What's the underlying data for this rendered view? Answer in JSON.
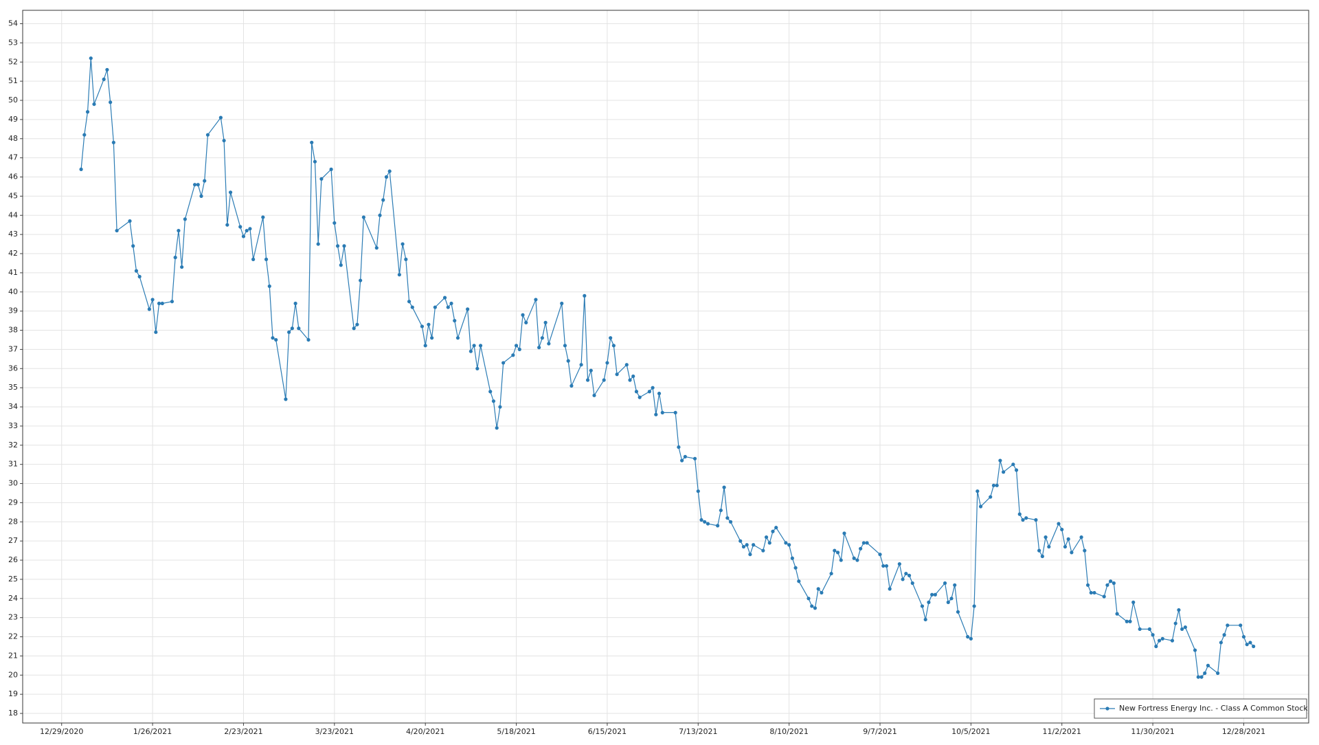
{
  "chart_data": {
    "type": "line",
    "x": [
      "1/4/2021",
      "1/5/2021",
      "1/6/2021",
      "1/7/2021",
      "1/8/2021",
      "1/11/2021",
      "1/12/2021",
      "1/13/2021",
      "1/14/2021",
      "1/15/2021",
      "1/19/2021",
      "1/20/2021",
      "1/21/2021",
      "1/22/2021",
      "1/25/2021",
      "1/26/2021",
      "1/27/2021",
      "1/28/2021",
      "1/29/2021",
      "2/1/2021",
      "2/2/2021",
      "2/3/2021",
      "2/4/2021",
      "2/5/2021",
      "2/8/2021",
      "2/9/2021",
      "2/10/2021",
      "2/11/2021",
      "2/12/2021",
      "2/16/2021",
      "2/17/2021",
      "2/18/2021",
      "2/19/2021",
      "2/22/2021",
      "2/23/2021",
      "2/24/2021",
      "2/25/2021",
      "2/26/2021",
      "3/1/2021",
      "3/2/2021",
      "3/3/2021",
      "3/4/2021",
      "3/5/2021",
      "3/8/2021",
      "3/9/2021",
      "3/10/2021",
      "3/11/2021",
      "3/12/2021",
      "3/15/2021",
      "3/16/2021",
      "3/17/2021",
      "3/18/2021",
      "3/19/2021",
      "3/22/2021",
      "3/23/2021",
      "3/24/2021",
      "3/25/2021",
      "3/26/2021",
      "3/29/2021",
      "3/30/2021",
      "3/31/2021",
      "4/1/2021",
      "4/5/2021",
      "4/6/2021",
      "4/7/2021",
      "4/8/2021",
      "4/9/2021",
      "4/12/2021",
      "4/13/2021",
      "4/14/2021",
      "4/15/2021",
      "4/16/2021",
      "4/19/2021",
      "4/20/2021",
      "4/21/2021",
      "4/22/2021",
      "4/23/2021",
      "4/26/2021",
      "4/27/2021",
      "4/28/2021",
      "4/29/2021",
      "4/30/2021",
      "5/3/2021",
      "5/4/2021",
      "5/5/2021",
      "5/6/2021",
      "5/7/2021",
      "5/10/2021",
      "5/11/2021",
      "5/12/2021",
      "5/13/2021",
      "5/14/2021",
      "5/17/2021",
      "5/18/2021",
      "5/19/2021",
      "5/20/2021",
      "5/21/2021",
      "5/24/2021",
      "5/25/2021",
      "5/26/2021",
      "5/27/2021",
      "5/28/2021",
      "6/1/2021",
      "6/2/2021",
      "6/3/2021",
      "6/4/2021",
      "6/7/2021",
      "6/8/2021",
      "6/9/2021",
      "6/10/2021",
      "6/11/2021",
      "6/14/2021",
      "6/15/2021",
      "6/16/2021",
      "6/17/2021",
      "6/18/2021",
      "6/21/2021",
      "6/22/2021",
      "6/23/2021",
      "6/24/2021",
      "6/25/2021",
      "6/28/2021",
      "6/29/2021",
      "6/30/2021",
      "7/1/2021",
      "7/2/2021",
      "7/6/2021",
      "7/7/2021",
      "7/8/2021",
      "7/9/2021",
      "7/12/2021",
      "7/13/2021",
      "7/14/2021",
      "7/15/2021",
      "7/16/2021",
      "7/19/2021",
      "7/20/2021",
      "7/21/2021",
      "7/22/2021",
      "7/23/2021",
      "7/26/2021",
      "7/27/2021",
      "7/28/2021",
      "7/29/2021",
      "7/30/2021",
      "8/2/2021",
      "8/3/2021",
      "8/4/2021",
      "8/5/2021",
      "8/6/2021",
      "8/9/2021",
      "8/10/2021",
      "8/11/2021",
      "8/12/2021",
      "8/13/2021",
      "8/16/2021",
      "8/17/2021",
      "8/18/2021",
      "8/19/2021",
      "8/20/2021",
      "8/23/2021",
      "8/24/2021",
      "8/25/2021",
      "8/26/2021",
      "8/27/2021",
      "8/30/2021",
      "8/31/2021",
      "9/1/2021",
      "9/2/2021",
      "9/3/2021",
      "9/7/2021",
      "9/8/2021",
      "9/9/2021",
      "9/10/2021",
      "9/13/2021",
      "9/14/2021",
      "9/15/2021",
      "9/16/2021",
      "9/17/2021",
      "9/20/2021",
      "9/21/2021",
      "9/22/2021",
      "9/23/2021",
      "9/24/2021",
      "9/27/2021",
      "9/28/2021",
      "9/29/2021",
      "9/30/2021",
      "10/1/2021",
      "10/4/2021",
      "10/5/2021",
      "10/6/2021",
      "10/7/2021",
      "10/8/2021",
      "10/11/2021",
      "10/12/2021",
      "10/13/2021",
      "10/14/2021",
      "10/15/2021",
      "10/18/2021",
      "10/19/2021",
      "10/20/2021",
      "10/21/2021",
      "10/22/2021",
      "10/25/2021",
      "10/26/2021",
      "10/27/2021",
      "10/28/2021",
      "10/29/2021",
      "11/1/2021",
      "11/2/2021",
      "11/3/2021",
      "11/4/2021",
      "11/5/2021",
      "11/8/2021",
      "11/9/2021",
      "11/10/2021",
      "11/11/2021",
      "11/12/2021",
      "11/15/2021",
      "11/16/2021",
      "11/17/2021",
      "11/18/2021",
      "11/19/2021",
      "11/22/2021",
      "11/23/2021",
      "11/24/2021",
      "11/26/2021",
      "11/29/2021",
      "11/30/2021",
      "12/1/2021",
      "12/2/2021",
      "12/3/2021",
      "12/6/2021",
      "12/7/2021",
      "12/8/2021",
      "12/9/2021",
      "12/10/2021",
      "12/13/2021",
      "12/14/2021",
      "12/15/2021",
      "12/16/2021",
      "12/17/2021",
      "12/20/2021",
      "12/21/2021",
      "12/22/2021",
      "12/23/2021",
      "12/27/2021",
      "12/28/2021",
      "12/29/2021",
      "12/30/2021",
      "12/31/2021"
    ],
    "series": [
      {
        "name": "New Fortress Energy Inc. - Class A Common Stock",
        "color": "#2a7bb4",
        "values": [
          46.4,
          48.2,
          49.4,
          52.2,
          49.8,
          51.1,
          51.6,
          49.9,
          47.8,
          43.2,
          43.7,
          42.4,
          41.1,
          40.8,
          39.1,
          39.6,
          37.9,
          39.4,
          39.4,
          39.5,
          41.8,
          43.2,
          41.3,
          43.8,
          45.6,
          45.6,
          45.0,
          45.8,
          48.2,
          49.1,
          47.9,
          43.5,
          45.2,
          43.4,
          42.9,
          43.2,
          43.3,
          41.7,
          43.9,
          41.7,
          40.3,
          37.6,
          37.5,
          34.4,
          37.9,
          38.1,
          39.4,
          38.1,
          37.5,
          47.8,
          46.8,
          42.5,
          45.9,
          46.4,
          43.6,
          42.4,
          41.4,
          42.4,
          38.1,
          38.3,
          40.6,
          43.9,
          42.3,
          44.0,
          44.8,
          46.0,
          46.3,
          40.9,
          42.5,
          41.7,
          39.5,
          39.2,
          38.2,
          37.2,
          38.3,
          37.6,
          39.2,
          39.7,
          39.2,
          39.4,
          38.5,
          37.6,
          39.1,
          36.9,
          37.2,
          36.0,
          37.2,
          34.8,
          34.3,
          32.9,
          34.0,
          36.3,
          36.7,
          37.2,
          37.0,
          38.8,
          38.4,
          39.6,
          37.1,
          37.6,
          38.4,
          37.3,
          39.4,
          37.2,
          36.4,
          35.1,
          36.2,
          39.8,
          35.4,
          35.9,
          34.6,
          35.4,
          36.3,
          37.6,
          37.2,
          35.7,
          36.2,
          35.4,
          35.6,
          34.8,
          34.5,
          34.8,
          35.0,
          33.6,
          34.7,
          33.7,
          33.7,
          31.9,
          31.2,
          31.4,
          31.3,
          29.6,
          28.1,
          28.0,
          27.9,
          27.8,
          28.6,
          29.8,
          28.2,
          28.0,
          27.0,
          26.7,
          26.8,
          26.3,
          26.8,
          26.5,
          27.2,
          26.9,
          27.5,
          27.7,
          26.9,
          26.8,
          26.1,
          25.6,
          24.9,
          24.0,
          23.6,
          23.5,
          24.5,
          24.3,
          25.3,
          26.5,
          26.4,
          26.0,
          27.4,
          26.1,
          26.0,
          26.6,
          26.9,
          26.9,
          26.3,
          25.7,
          25.7,
          24.5,
          25.8,
          25.0,
          25.3,
          25.2,
          24.8,
          23.6,
          22.9,
          23.8,
          24.2,
          24.2,
          24.8,
          23.8,
          24.0,
          24.7,
          23.3,
          22.0,
          21.9,
          23.6,
          29.6,
          28.8,
          29.3,
          29.9,
          29.9,
          31.2,
          30.6,
          31.0,
          30.7,
          28.4,
          28.1,
          28.2,
          28.1,
          26.5,
          26.2,
          27.2,
          26.7,
          27.9,
          27.6,
          26.7,
          27.1,
          26.4,
          27.2,
          26.5,
          24.7,
          24.3,
          24.3,
          24.1,
          24.7,
          24.9,
          24.8,
          23.2,
          22.8,
          22.8,
          23.8,
          22.4,
          22.4,
          22.1,
          21.5,
          21.8,
          21.9,
          21.8,
          22.7,
          23.4,
          22.4,
          22.5,
          21.3,
          19.9,
          19.9,
          20.1,
          20.5,
          20.1,
          21.7,
          22.1,
          22.6,
          22.6,
          22.0,
          21.6,
          21.7,
          21.5
        ]
      }
    ],
    "xlim": [
      "12/17/2020",
      "1/17/2022"
    ],
    "xticks": [
      "12/29/2020",
      "1/26/2021",
      "2/23/2021",
      "3/23/2021",
      "4/20/2021",
      "5/18/2021",
      "6/15/2021",
      "7/13/2021",
      "8/10/2021",
      "9/7/2021",
      "10/5/2021",
      "11/2/2021",
      "11/30/2021",
      "12/28/2021"
    ],
    "ylim": [
      17.5,
      54.7
    ],
    "yticks": [
      18,
      19,
      20,
      21,
      22,
      23,
      24,
      25,
      26,
      27,
      28,
      29,
      30,
      31,
      32,
      33,
      34,
      35,
      36,
      37,
      38,
      39,
      40,
      41,
      42,
      43,
      44,
      45,
      46,
      47,
      48,
      49,
      50,
      51,
      52,
      53,
      54
    ],
    "grid": true,
    "legend": "lower right"
  }
}
